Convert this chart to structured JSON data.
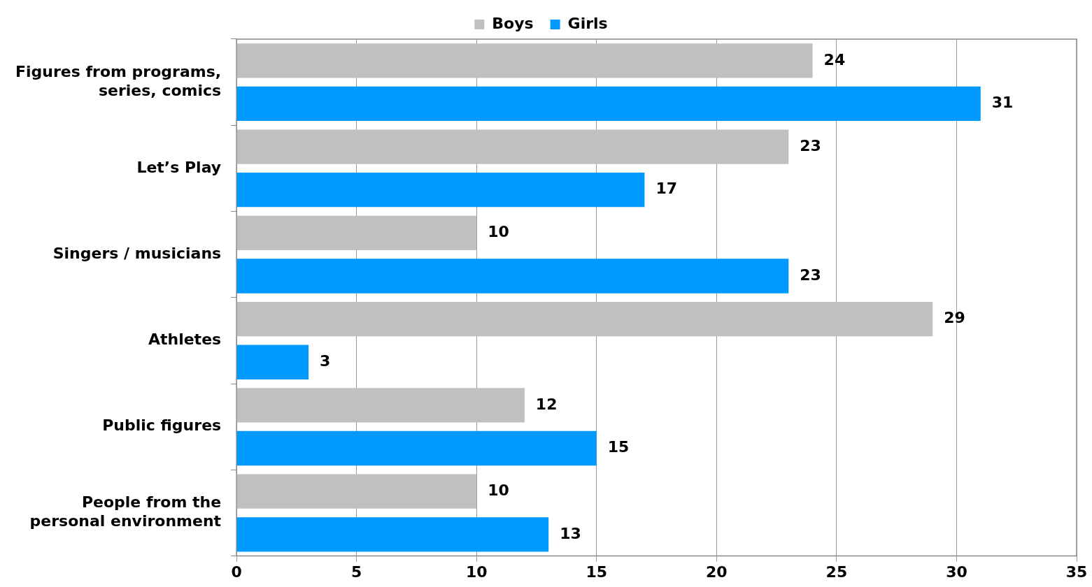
{
  "chart_data": {
    "type": "bar",
    "orientation": "horizontal",
    "categories": [
      "Figures from programs, series, comics",
      "Let’s Play",
      "Singers / musicians",
      "Athletes",
      "Public figures",
      "People from the personal environment"
    ],
    "series": [
      {
        "name": "Boys",
        "color": "#c0c0c0",
        "values": [
          24,
          23,
          10,
          29,
          12,
          10
        ]
      },
      {
        "name": "Girls",
        "color": "#0099ff",
        "values": [
          31,
          17,
          23,
          3,
          15,
          13
        ]
      }
    ],
    "xlim": [
      0,
      35
    ],
    "xticks": [
      0,
      5,
      10,
      15,
      20,
      25,
      30,
      35
    ],
    "grid": "x",
    "legend": "top",
    "data_labels": true
  }
}
